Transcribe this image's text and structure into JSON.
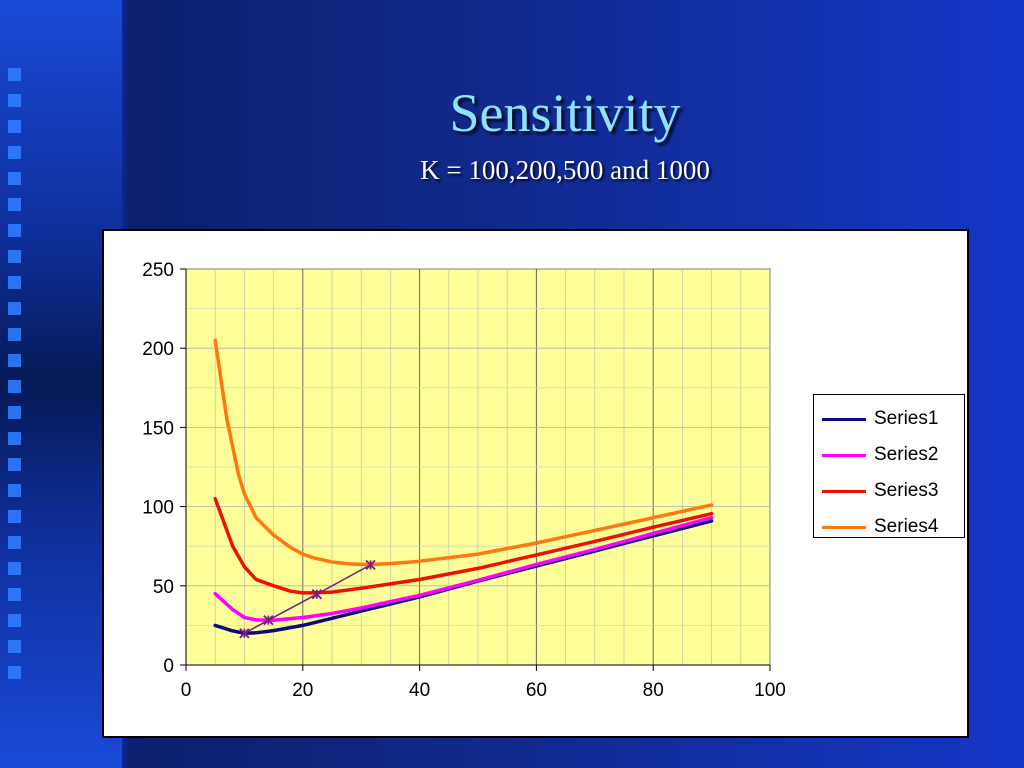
{
  "slide": {
    "title": "Sensitivity",
    "subtitle": "K = 100,200,500  and 1000"
  },
  "chart_data": {
    "type": "line",
    "title": "",
    "xlabel": "",
    "ylabel": "",
    "xlim": [
      0,
      100
    ],
    "ylim": [
      0,
      250
    ],
    "xticks": [
      "0",
      "20",
      "40",
      "60",
      "80",
      "100"
    ],
    "yticks": [
      "0",
      "50",
      "100",
      "150",
      "200",
      "250"
    ],
    "grid": true,
    "legend_position": "right",
    "series": [
      {
        "name": "Series1",
        "color": "#0a0a7a",
        "x": [
          5,
          8,
          10,
          12,
          15,
          20,
          25,
          30,
          40,
          50,
          60,
          70,
          80,
          90
        ],
        "y": [
          25,
          21.5,
          20,
          20.3,
          21.7,
          25,
          29.5,
          34,
          43,
          53,
          62.5,
          72,
          81.5,
          91
        ]
      },
      {
        "name": "Series2",
        "color": "#ff00ff",
        "x": [
          5,
          8,
          10,
          12,
          14,
          15,
          20,
          25,
          30,
          40,
          50,
          60,
          70,
          80,
          90
        ],
        "y": [
          45,
          35,
          30,
          28.5,
          28.3,
          28.3,
          30,
          32.5,
          36,
          44,
          53.5,
          63.5,
          73,
          83,
          93
        ]
      },
      {
        "name": "Series3",
        "color": "#ee1100",
        "x": [
          5,
          8,
          10,
          12,
          15,
          18,
          20,
          22,
          25,
          30,
          40,
          50,
          60,
          70,
          80,
          90
        ],
        "y": [
          105,
          75,
          62,
          54,
          50,
          46.5,
          45.5,
          45.5,
          46,
          48.5,
          54,
          61,
          69.5,
          78,
          87,
          95.5
        ]
      },
      {
        "name": "Series4",
        "color": "#ff7711",
        "x": [
          5,
          7,
          9,
          10,
          12,
          15,
          18,
          20,
          22,
          25,
          28,
          30,
          32,
          35,
          40,
          50,
          60,
          70,
          80,
          90
        ],
        "y": [
          205,
          155,
          120,
          108,
          93,
          82,
          74,
          70,
          67.5,
          65,
          63.8,
          63.5,
          63.5,
          64,
          65.5,
          70,
          77,
          85,
          93,
          101
        ]
      },
      {
        "name": "",
        "color": "#7a1a8a",
        "marker": "x",
        "x": [
          10,
          14.1,
          22.4,
          31.6
        ],
        "y": [
          20,
          28.3,
          44.7,
          63.2
        ]
      }
    ]
  }
}
